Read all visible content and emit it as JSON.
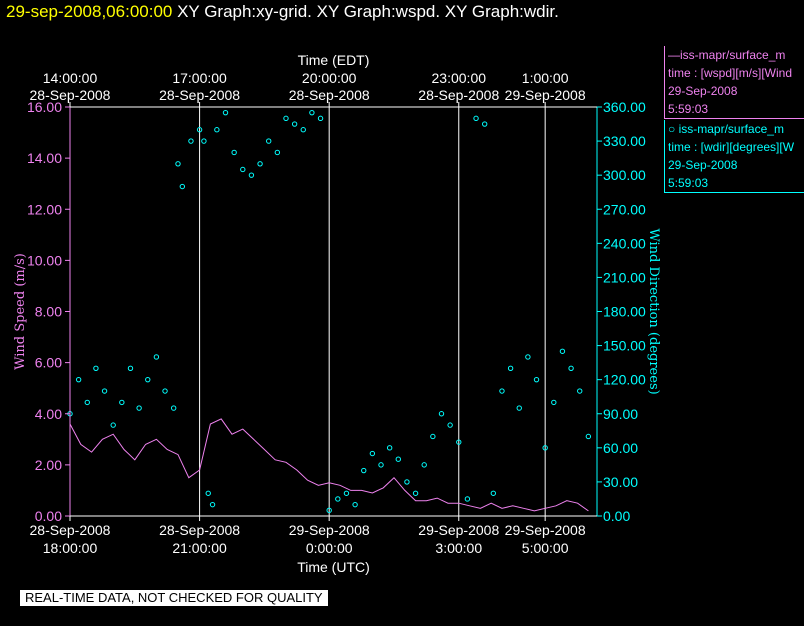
{
  "title": {
    "timestamp": "29-sep-2008,06:00:00",
    "graphs": "XY Graph:xy-grid.  XY Graph:wspd.  XY Graph:wdir."
  },
  "legend": [
    {
      "line1": "—iss-mapr/surface_m",
      "line2": "time : [wspd][m/s][Wind",
      "line3": "29-Sep-2008",
      "line4": "5:59:03"
    },
    {
      "line1": "○  iss-mapr/surface_m",
      "line2": "time : [wdir][degrees][W",
      "line3": "29-Sep-2008",
      "line4": "5:59:03"
    }
  ],
  "quality_notice": "REAL-TIME DATA, NOT CHECKED FOR QUALITY",
  "colors": {
    "wspd": "#ee82ee",
    "wdir": "#00ffff",
    "grid": "#ffffff",
    "title_time": "#ffff00"
  },
  "chart_data": {
    "type": "line",
    "title": "",
    "xlabel": "Time (UTC)",
    "top_xlabel": "Time (EDT)",
    "ylabel": "Wind Speed (m/s)",
    "y2label": "Wind Direction (degrees)",
    "xlim": [
      0,
      12.2
    ],
    "ylim": [
      0,
      16
    ],
    "y2lim": [
      0,
      360
    ],
    "yticks": [
      "0.00",
      "2.00",
      "4.00",
      "6.00",
      "8.00",
      "10.00",
      "12.00",
      "14.00",
      "16.00"
    ],
    "y2ticks": [
      "0.00",
      "30.00",
      "60.00",
      "90.00",
      "120.00",
      "150.00",
      "180.00",
      "210.00",
      "240.00",
      "270.00",
      "300.00",
      "330.00",
      "360.00"
    ],
    "bottom_ticks": [
      {
        "x": 0,
        "date": "28-Sep-2008",
        "time": "18:00:00"
      },
      {
        "x": 3,
        "date": "28-Sep-2008",
        "time": "21:00:00"
      },
      {
        "x": 6,
        "date": "29-Sep-2008",
        "time": "0:00:00"
      },
      {
        "x": 9,
        "date": "29-Sep-2008",
        "time": "3:00:00"
      },
      {
        "x": 11,
        "date": "29-Sep-2008",
        "time": "5:00:00"
      }
    ],
    "top_ticks": [
      {
        "x": 0,
        "time": "14:00:00",
        "date": "28-Sep-2008"
      },
      {
        "x": 3,
        "time": "17:00:00",
        "date": "28-Sep-2008"
      },
      {
        "x": 6,
        "time": "20:00:00",
        "date": "28-Sep-2008"
      },
      {
        "x": 9,
        "time": "23:00:00",
        "date": "28-Sep-2008"
      },
      {
        "x": 11,
        "time": "1:00:00",
        "date": "29-Sep-2008"
      }
    ],
    "grid": true,
    "series": [
      {
        "name": "wspd",
        "axis": "left",
        "style": "line",
        "x": [
          0,
          0.25,
          0.5,
          0.75,
          1,
          1.25,
          1.5,
          1.75,
          2,
          2.25,
          2.5,
          2.75,
          3,
          3.25,
          3.5,
          3.75,
          4,
          4.25,
          4.5,
          4.75,
          5,
          5.25,
          5.5,
          5.75,
          6,
          6.25,
          6.5,
          6.75,
          7,
          7.25,
          7.5,
          7.75,
          8,
          8.25,
          8.5,
          8.75,
          9,
          9.25,
          9.5,
          9.75,
          10,
          10.25,
          10.5,
          10.75,
          11,
          11.25,
          11.5,
          11.75,
          12
        ],
        "values": [
          3.6,
          2.8,
          2.5,
          3.0,
          3.2,
          2.6,
          2.2,
          2.8,
          3.0,
          2.6,
          2.4,
          1.5,
          1.8,
          3.6,
          3.8,
          3.2,
          3.4,
          3.0,
          2.6,
          2.2,
          2.1,
          1.8,
          1.4,
          1.2,
          1.3,
          1.2,
          1.0,
          1.0,
          0.9,
          1.1,
          1.5,
          1.0,
          0.6,
          0.6,
          0.7,
          0.5,
          0.5,
          0.4,
          0.3,
          0.5,
          0.3,
          0.4,
          0.3,
          0.2,
          0.3,
          0.4,
          0.6,
          0.5,
          0.2
        ]
      },
      {
        "name": "wdir",
        "axis": "right",
        "style": "markers",
        "x": [
          0,
          0.2,
          0.4,
          0.6,
          0.8,
          1,
          1.2,
          1.4,
          1.6,
          1.8,
          2,
          2.2,
          2.4,
          2.5,
          2.6,
          2.8,
          3,
          3.1,
          3.2,
          3.3,
          3.4,
          3.6,
          3.8,
          4,
          4.2,
          4.4,
          4.6,
          4.8,
          5,
          5.2,
          5.4,
          5.6,
          5.8,
          6,
          6.2,
          6.4,
          6.6,
          6.8,
          7,
          7.2,
          7.4,
          7.6,
          7.8,
          8,
          8.2,
          8.4,
          8.6,
          8.8,
          9,
          9.2,
          9.4,
          9.6,
          9.8,
          10,
          10.2,
          10.4,
          10.6,
          10.8,
          11,
          11.2,
          11.4,
          11.6,
          11.8,
          12
        ],
        "values": [
          90,
          120,
          100,
          130,
          110,
          80,
          100,
          130,
          95,
          120,
          140,
          110,
          95,
          310,
          290,
          330,
          340,
          330,
          20,
          10,
          340,
          355,
          320,
          305,
          300,
          310,
          330,
          320,
          350,
          345,
          340,
          355,
          350,
          5,
          15,
          20,
          10,
          40,
          55,
          45,
          60,
          50,
          30,
          20,
          45,
          70,
          90,
          80,
          65,
          15,
          350,
          345,
          20,
          110,
          130,
          95,
          140,
          120,
          60,
          100,
          145,
          130,
          110,
          70
        ]
      }
    ]
  }
}
